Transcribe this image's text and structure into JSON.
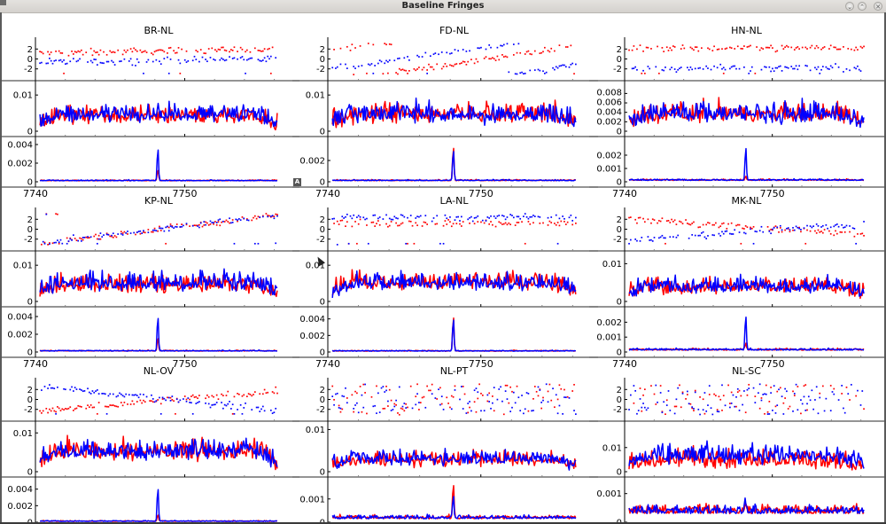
{
  "window": {
    "title": "Baseline Fringes",
    "buttons": [
      {
        "name": "minimize",
        "icon": "chevron-down-icon",
        "glyph": "⌄"
      },
      {
        "name": "maximize",
        "icon": "chevron-up-icon",
        "glyph": "⌃"
      },
      {
        "name": "close",
        "icon": "close-icon",
        "glyph": "✕"
      }
    ],
    "toolbar_icon": {
      "icon": "annotation-icon",
      "glyph": "A"
    }
  },
  "colors": {
    "series_red": "#ff0000",
    "series_blue": "#0000ff",
    "axis": "#000000",
    "background": "#ffffff"
  },
  "chart_data": {
    "type": "line",
    "layout": "3x3 grid of baselines, each with phase (scatter), amplitude (line) and delay spectrum (line) subplots",
    "xlim": [
      7740,
      7756.5
    ],
    "x_ticks": [
      7740,
      7750
    ],
    "x_tick_labels": [
      "7740",
      "7750"
    ],
    "series_names": [
      "red",
      "blue"
    ],
    "peak_x": 7748.2,
    "panels": [
      {
        "title": "BR-NL",
        "phase": {
          "ylim": [
            -3.3,
            3.3
          ],
          "ticks": [
            -2,
            0,
            2
          ],
          "red_mean": 1.6,
          "blue_mean": -0.3,
          "red_slope": 0.05,
          "blue_slope": 0.05
        },
        "amp": {
          "ylim": [
            0,
            0.012
          ],
          "ticks": [
            0,
            0.01
          ],
          "tick_labels": [
            "0",
            "0.01"
          ],
          "red_level": 0.0042,
          "blue_level": 0.0045,
          "noise": 0.0025
        },
        "delay": {
          "ylim": [
            0,
            0.004
          ],
          "ticks": [
            0,
            0.002,
            0.004
          ],
          "tick_labels": [
            "0",
            "0.002",
            "0.004"
          ],
          "base": 0.0001,
          "red_peak": 0.0012,
          "blue_peak": 0.0035
        }
      },
      {
        "title": "FD-NL",
        "phase": {
          "ylim": [
            -3.3,
            3.3
          ],
          "ticks": [
            -2,
            0,
            2
          ],
          "red_mean": -1.0,
          "blue_mean": 1.5,
          "red_slope": 0.45,
          "blue_slope": 0.45
        },
        "amp": {
          "ylim": [
            0,
            0.012
          ],
          "ticks": [
            0,
            0.01
          ],
          "tick_labels": [
            "0",
            "0.01"
          ],
          "red_level": 0.0045,
          "blue_level": 0.0045,
          "noise": 0.0028
        },
        "delay": {
          "ylim": [
            0,
            0.0035
          ],
          "ticks": [
            0,
            0.002
          ],
          "tick_labels": [
            "0",
            "0.002"
          ],
          "base": 0.0001,
          "red_peak": 0.0033,
          "blue_peak": 0.003
        }
      },
      {
        "title": "HN-NL",
        "phase": {
          "ylim": [
            -3.3,
            3.3
          ],
          "ticks": [
            -2,
            0,
            2
          ],
          "red_mean": 2.2,
          "blue_mean": -1.8,
          "red_slope": 0.0,
          "blue_slope": 0.0
        },
        "amp": {
          "ylim": [
            0,
            0.0092
          ],
          "ticks": [
            0,
            0.002,
            0.004,
            0.006,
            0.008
          ],
          "tick_labels": [
            "0",
            "0.002",
            "0.004",
            "0.006",
            "0.008"
          ],
          "red_level": 0.0035,
          "blue_level": 0.0035,
          "noise": 0.0022
        },
        "delay": {
          "ylim": [
            0,
            0.0028
          ],
          "ticks": [
            0,
            0.001,
            0.002
          ],
          "tick_labels": [
            "0",
            "0.001",
            "0.002"
          ],
          "base": 0.0001,
          "red_peak": 0.0003,
          "blue_peak": 0.0026
        }
      },
      {
        "title": "KP-NL",
        "phase": {
          "ylim": [
            -3.3,
            3.3
          ],
          "ticks": [
            -2,
            0,
            2
          ],
          "red_mean": 0.0,
          "blue_mean": 0.0,
          "red_slope": 0.36,
          "blue_slope": 0.36
        },
        "amp": {
          "ylim": [
            0,
            0.012
          ],
          "ticks": [
            0,
            0.01
          ],
          "tick_labels": [
            "0",
            "0.01"
          ],
          "red_level": 0.0045,
          "blue_level": 0.005,
          "noise": 0.0026
        },
        "delay": {
          "ylim": [
            0,
            0.0042
          ],
          "ticks": [
            0,
            0.002,
            0.004
          ],
          "tick_labels": [
            "0",
            "0.002",
            "0.004"
          ],
          "base": 0.0001,
          "red_peak": 0.0015,
          "blue_peak": 0.004
        }
      },
      {
        "title": "LA-NL",
        "phase": {
          "ylim": [
            -3.3,
            3.3
          ],
          "ticks": [
            -2,
            0,
            2
          ],
          "red_mean": 1.2,
          "blue_mean": 2.4,
          "red_slope": 0.0,
          "blue_slope": 0.0
        },
        "amp": {
          "ylim": [
            0,
            0.012
          ],
          "ticks": [
            0,
            0.01
          ],
          "tick_labels": [
            "0",
            "0.01"
          ],
          "red_level": 0.0052,
          "blue_level": 0.005,
          "noise": 0.0025
        },
        "delay": {
          "ylim": [
            0,
            0.0045
          ],
          "ticks": [
            0,
            0.002,
            0.004
          ],
          "tick_labels": [
            "0",
            "0.002",
            "0.004"
          ],
          "base": 0.0001,
          "red_peak": 0.0043,
          "blue_peak": 0.0041
        }
      },
      {
        "title": "MK-NL",
        "phase": {
          "ylim": [
            -3.3,
            3.3
          ],
          "ticks": [
            -2,
            0,
            2
          ],
          "red_mean": 0.5,
          "blue_mean": -0.5,
          "red_slope": -0.2,
          "blue_slope": 0.2
        },
        "amp": {
          "ylim": [
            0,
            0.0115
          ],
          "ticks": [
            0,
            0.01
          ],
          "tick_labels": [
            "0",
            "0.01"
          ],
          "red_level": 0.0038,
          "blue_level": 0.0038,
          "noise": 0.0022
        },
        "delay": {
          "ylim": [
            0,
            0.0025
          ],
          "ticks": [
            0,
            0.001,
            0.002
          ],
          "tick_labels": [
            "0",
            "0.001",
            "0.002"
          ],
          "base": 0.00012,
          "red_peak": 0.0004,
          "blue_peak": 0.0024
        }
      },
      {
        "title": "NL-OV",
        "phase": {
          "ylim": [
            -3.3,
            3.3
          ],
          "ticks": [
            -2,
            0,
            2
          ],
          "red_mean": -0.3,
          "blue_mean": 0.2,
          "red_slope": 0.25,
          "blue_slope": -0.3
        },
        "amp": {
          "ylim": [
            0,
            0.0112
          ],
          "ticks": [
            0,
            0.01
          ],
          "tick_labels": [
            "0",
            "0.01"
          ],
          "red_level": 0.0052,
          "blue_level": 0.0052,
          "noise": 0.0028
        },
        "delay": {
          "ylim": [
            0,
            0.0045
          ],
          "ticks": [
            0,
            0.002,
            0.004
          ],
          "tick_labels": [
            "0",
            "0.002",
            "0.004"
          ],
          "base": 0.0001,
          "red_peak": 0.0008,
          "blue_peak": 0.0042
        }
      },
      {
        "title": "NL-PT",
        "phase": {
          "ylim": [
            -3.3,
            3.3
          ],
          "ticks": [
            -2,
            0,
            2
          ],
          "red_mean": 0.0,
          "blue_mean": 0.0,
          "red_slope": 0.0,
          "blue_slope": 0.0
        },
        "amp": {
          "ylim": [
            0,
            0.0103
          ],
          "ticks": [
            0,
            0.01
          ],
          "tick_labels": [
            "0",
            "0.01"
          ],
          "red_level": 0.0028,
          "blue_level": 0.003,
          "noise": 0.0018
        },
        "delay": {
          "ylim": [
            0,
            0.0016
          ],
          "ticks": [
            0,
            0.001
          ],
          "tick_labels": [
            "0",
            "0.001"
          ],
          "base": 0.00015,
          "red_peak": 0.0015,
          "blue_peak": 0.001
        }
      },
      {
        "title": "NL-SC",
        "phase": {
          "ylim": [
            -3.3,
            3.3
          ],
          "ticks": [
            -2,
            0,
            2
          ],
          "red_mean": 0.0,
          "blue_mean": 0.0,
          "red_slope": 0.0,
          "blue_slope": 0.0
        },
        "amp": {
          "ylim": [
            0,
            0.018
          ],
          "ticks": [
            0,
            0.01
          ],
          "tick_labels": [
            "0",
            "0.01"
          ],
          "red_level": 0.0045,
          "blue_level": 0.0065,
          "noise": 0.004
        },
        "delay": {
          "ylim": [
            0,
            0.0013
          ],
          "ticks": [
            0,
            0.001
          ],
          "tick_labels": [
            "0",
            "0.001"
          ],
          "base": 0.0003,
          "red_peak": 0.0003,
          "blue_peak": 0.0003
        }
      }
    ]
  }
}
